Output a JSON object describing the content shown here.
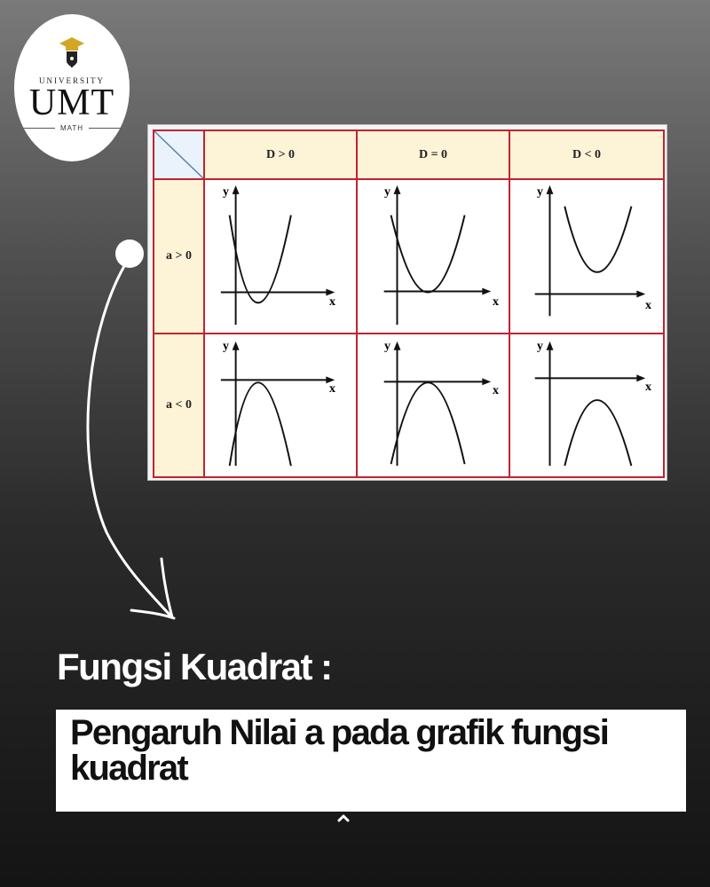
{
  "logo": {
    "university": "UNIVERSITY",
    "brand": "UMT",
    "dept": "MATH"
  },
  "table": {
    "columns": [
      "D > 0",
      "D = 0",
      "D < 0"
    ],
    "rows": [
      "a > 0",
      "a < 0"
    ],
    "axis_x_label": "x",
    "axis_y_label": "y"
  },
  "title": "Fungsi Kuadrat :",
  "subtitle": "Pengaruh Nilai a pada grafik fungsi kuadrat",
  "colors": {
    "grid_border": "#c22230",
    "header_fill": "#fdf3d6",
    "text_white": "#ffffff"
  },
  "icons": [
    "graduation-cap-icon",
    "curved-arrow-icon",
    "caret-up-icon"
  ]
}
